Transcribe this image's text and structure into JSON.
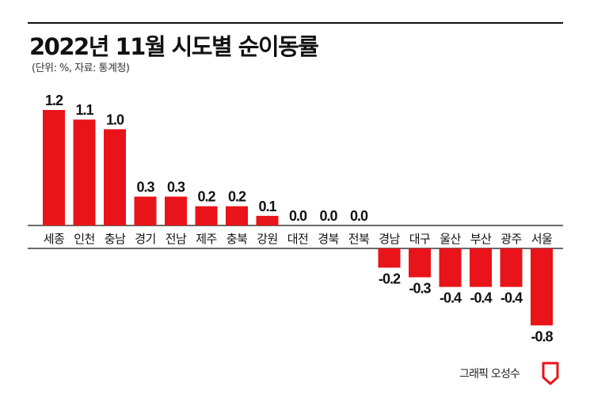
{
  "title": "2022년 11월 시도별 순이동률",
  "subtitle": "(단위: %, 자료: 통계청)",
  "credit": "그래픽 오성수",
  "colors": {
    "bar": "#e8141a",
    "axis": "#111111",
    "text": "#111111"
  },
  "icons": {
    "logo": "document-logo-icon"
  },
  "chart_data": {
    "type": "bar",
    "title": "2022년 11월 시도별 순이동률",
    "xlabel": "",
    "ylabel": "",
    "ylim": [
      -0.8,
      1.2
    ],
    "grid": false,
    "legend": "none",
    "categories": [
      "세종",
      "인천",
      "충남",
      "경기",
      "전남",
      "제주",
      "충북",
      "강원",
      "대전",
      "경북",
      "전북",
      "경남",
      "대구",
      "울산",
      "부산",
      "광주",
      "서울"
    ],
    "values": [
      1.2,
      1.1,
      1.0,
      0.3,
      0.3,
      0.2,
      0.2,
      0.1,
      0.0,
      0.0,
      0.0,
      -0.2,
      -0.3,
      -0.4,
      -0.4,
      -0.4,
      -0.8
    ],
    "value_labels": [
      "1.2",
      "1.1",
      "1.0",
      "0.3",
      "0.3",
      "0.2",
      "0.2",
      "0.1",
      "0.0",
      "0.0",
      "0.0",
      "-0.2",
      "-0.3",
      "-0.4",
      "-0.4",
      "-0.4",
      "-0.8"
    ]
  }
}
